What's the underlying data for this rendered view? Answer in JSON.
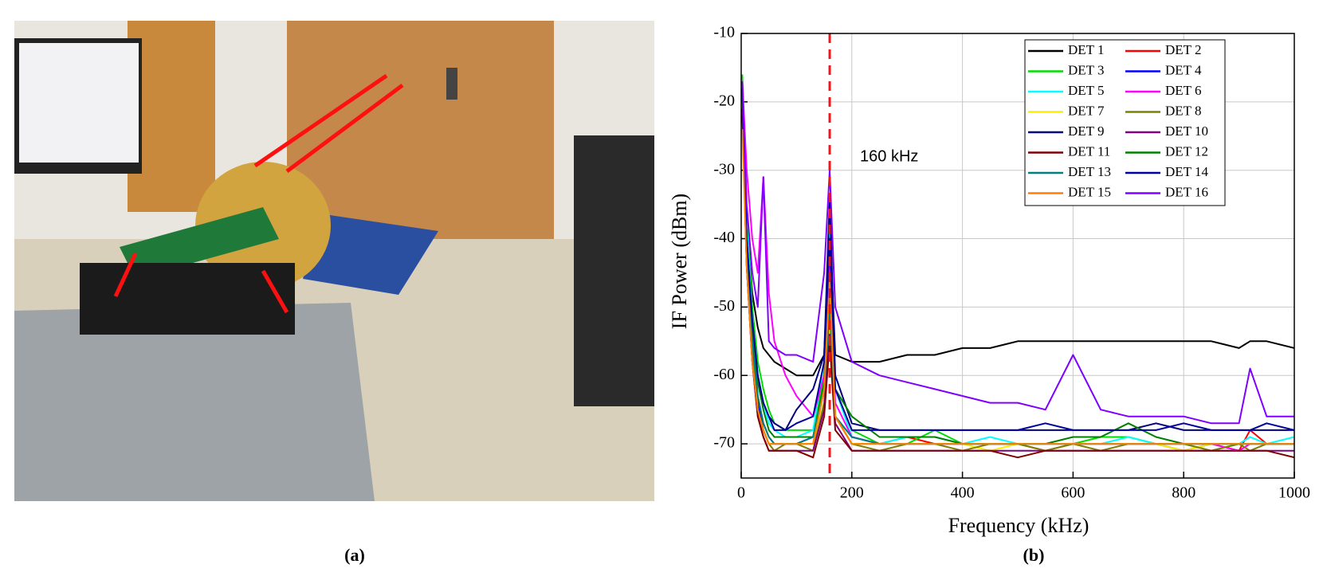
{
  "panel_labels": [
    "(a)",
    "(b)"
  ],
  "chart_data": {
    "type": "line",
    "xlabel": "Frequency (kHz)",
    "ylabel": "IF Power (dBm)",
    "annotations": [
      {
        "text": "160 kHz",
        "x": 160,
        "color": "#e8181c"
      }
    ],
    "xlim": [
      0,
      1000
    ],
    "xticks": [
      0,
      200,
      400,
      600,
      800,
      1000
    ],
    "ylim": [
      -75,
      -10
    ],
    "yticks": [
      -10,
      -20,
      -30,
      -40,
      -50,
      -60,
      -70
    ],
    "grid": true,
    "legend": "upper right",
    "x": [
      2,
      10,
      20,
      30,
      40,
      50,
      60,
      80,
      100,
      130,
      150,
      160,
      170,
      200,
      250,
      300,
      350,
      400,
      450,
      500,
      550,
      600,
      650,
      700,
      750,
      800,
      850,
      900,
      920,
      950,
      1000
    ],
    "series": [
      {
        "name": "DET 1",
        "color": "#000000",
        "values": [
          -20,
          -38,
          -48,
          -53,
          -56,
          -57,
          -58,
          -59,
          -60,
          -60,
          -57,
          -38,
          -57,
          -58,
          -58,
          -57,
          -57,
          -56,
          -56,
          -55,
          -55,
          -55,
          -55,
          -55,
          -55,
          -55,
          -55,
          -56,
          -55,
          -55,
          -56
        ]
      },
      {
        "name": "DET 2",
        "color": "#ff0000",
        "values": [
          -18,
          -40,
          -54,
          -63,
          -67,
          -69,
          -70,
          -70,
          -70,
          -70,
          -62,
          -48,
          -66,
          -70,
          -70,
          -69,
          -70,
          -70,
          -70,
          -70,
          -71,
          -70,
          -70,
          -70,
          -70,
          -70,
          -70,
          -71,
          -68,
          -70,
          -70
        ]
      },
      {
        "name": "DET 3",
        "color": "#00dd00",
        "values": [
          -16,
          -36,
          -50,
          -58,
          -62,
          -65,
          -67,
          -68,
          -68,
          -68,
          -60,
          -44,
          -62,
          -68,
          -70,
          -70,
          -68,
          -70,
          -70,
          -70,
          -70,
          -70,
          -69,
          -69,
          -70,
          -70,
          -71,
          -70,
          -70,
          -70,
          -70
        ]
      },
      {
        "name": "DET 4",
        "color": "#0000ff",
        "values": [
          -19,
          -42,
          -56,
          -64,
          -68,
          -70,
          -70,
          -70,
          -70,
          -69,
          -62,
          -52,
          -66,
          -69,
          -70,
          -70,
          -70,
          -70,
          -70,
          -70,
          -70,
          -70,
          -70,
          -70,
          -70,
          -71,
          -70,
          -70,
          -70,
          -70,
          -70
        ]
      },
      {
        "name": "DET 5",
        "color": "#00ffff",
        "values": [
          -17,
          -38,
          -52,
          -60,
          -64,
          -67,
          -68,
          -69,
          -69,
          -68,
          -58,
          -36,
          -62,
          -69,
          -70,
          -69,
          -69,
          -70,
          -69,
          -70,
          -70,
          -70,
          -70,
          -69,
          -70,
          -70,
          -70,
          -70,
          -69,
          -70,
          -69
        ]
      },
      {
        "name": "DET 6",
        "color": "#ff00ff",
        "values": [
          -17,
          -30,
          -40,
          -45,
          -31,
          -48,
          -55,
          -60,
          -63,
          -66,
          -60,
          -42,
          -64,
          -69,
          -70,
          -70,
          -70,
          -70,
          -70,
          -70,
          -70,
          -70,
          -70,
          -70,
          -70,
          -70,
          -70,
          -71,
          -70,
          -70,
          -70
        ]
      },
      {
        "name": "DET 7",
        "color": "#ffee00",
        "values": [
          -20,
          -42,
          -56,
          -65,
          -68,
          -70,
          -70,
          -70,
          -70,
          -70,
          -64,
          -52,
          -66,
          -70,
          -70,
          -70,
          -70,
          -70,
          -71,
          -70,
          -70,
          -70,
          -70,
          -70,
          -70,
          -71,
          -70,
          -70,
          -70,
          -70,
          -70
        ]
      },
      {
        "name": "DET 8",
        "color": "#808000",
        "values": [
          -21,
          -43,
          -57,
          -65,
          -68,
          -70,
          -71,
          -70,
          -70,
          -71,
          -64,
          -50,
          -66,
          -70,
          -71,
          -70,
          -70,
          -71,
          -70,
          -70,
          -71,
          -70,
          -71,
          -70,
          -70,
          -70,
          -71,
          -70,
          -71,
          -70,
          -70
        ]
      },
      {
        "name": "DET 9",
        "color": "#000080",
        "values": [
          -18,
          -40,
          -52,
          -60,
          -64,
          -66,
          -67,
          -68,
          -65,
          -62,
          -57,
          -34,
          -60,
          -67,
          -68,
          -68,
          -68,
          -68,
          -68,
          -68,
          -68,
          -68,
          -68,
          -68,
          -67,
          -68,
          -68,
          -68,
          -68,
          -68,
          -68
        ]
      },
      {
        "name": "DET 10",
        "color": "#800080",
        "values": [
          -21,
          -44,
          -58,
          -66,
          -69,
          -71,
          -71,
          -71,
          -71,
          -71,
          -65,
          -54,
          -67,
          -71,
          -71,
          -71,
          -71,
          -71,
          -71,
          -71,
          -71,
          -71,
          -71,
          -71,
          -71,
          -71,
          -71,
          -71,
          -71,
          -71,
          -71
        ]
      },
      {
        "name": "DET 11",
        "color": "#800000",
        "values": [
          -22,
          -44,
          -58,
          -66,
          -69,
          -71,
          -71,
          -71,
          -71,
          -72,
          -66,
          -55,
          -68,
          -71,
          -71,
          -71,
          -71,
          -71,
          -71,
          -72,
          -71,
          -71,
          -71,
          -71,
          -71,
          -71,
          -71,
          -71,
          -71,
          -71,
          -72
        ]
      },
      {
        "name": "DET 12",
        "color": "#008000",
        "values": [
          -18,
          -40,
          -53,
          -61,
          -65,
          -68,
          -69,
          -69,
          -69,
          -69,
          -61,
          -47,
          -62,
          -66,
          -69,
          -69,
          -69,
          -70,
          -70,
          -70,
          -70,
          -69,
          -69,
          -67,
          -69,
          -70,
          -70,
          -70,
          -70,
          -70,
          -70
        ]
      },
      {
        "name": "DET 13",
        "color": "#008080",
        "values": [
          -19,
          -41,
          -55,
          -63,
          -67,
          -69,
          -70,
          -70,
          -70,
          -69,
          -62,
          -50,
          -66,
          -69,
          -70,
          -70,
          -70,
          -70,
          -70,
          -70,
          -70,
          -70,
          -70,
          -70,
          -70,
          -70,
          -70,
          -70,
          -70,
          -70,
          -70
        ]
      },
      {
        "name": "DET 14",
        "color": "#0000a0",
        "values": [
          -18,
          -40,
          -52,
          -60,
          -64,
          -66,
          -68,
          -68,
          -67,
          -66,
          -58,
          -40,
          -62,
          -68,
          -68,
          -68,
          -68,
          -68,
          -68,
          -68,
          -67,
          -68,
          -68,
          -68,
          -68,
          -67,
          -68,
          -68,
          -68,
          -67,
          -68
        ]
      },
      {
        "name": "DET 15",
        "color": "#ff8000",
        "values": [
          -24,
          -44,
          -58,
          -65,
          -68,
          -70,
          -70,
          -70,
          -70,
          -70,
          -62,
          -46,
          -66,
          -70,
          -70,
          -70,
          -70,
          -70,
          -70,
          -70,
          -70,
          -70,
          -70,
          -70,
          -70,
          -70,
          -70,
          -70,
          -70,
          -70,
          -70
        ]
      },
      {
        "name": "DET 16",
        "color": "#8000ff",
        "values": [
          -17,
          -35,
          -45,
          -50,
          -31,
          -55,
          -56,
          -57,
          -57,
          -58,
          -45,
          -30,
          -50,
          -58,
          -60,
          -61,
          -62,
          -63,
          -64,
          -64,
          -65,
          -57,
          -65,
          -66,
          -66,
          -66,
          -67,
          -67,
          -59,
          -66,
          -66
        ]
      }
    ]
  }
}
